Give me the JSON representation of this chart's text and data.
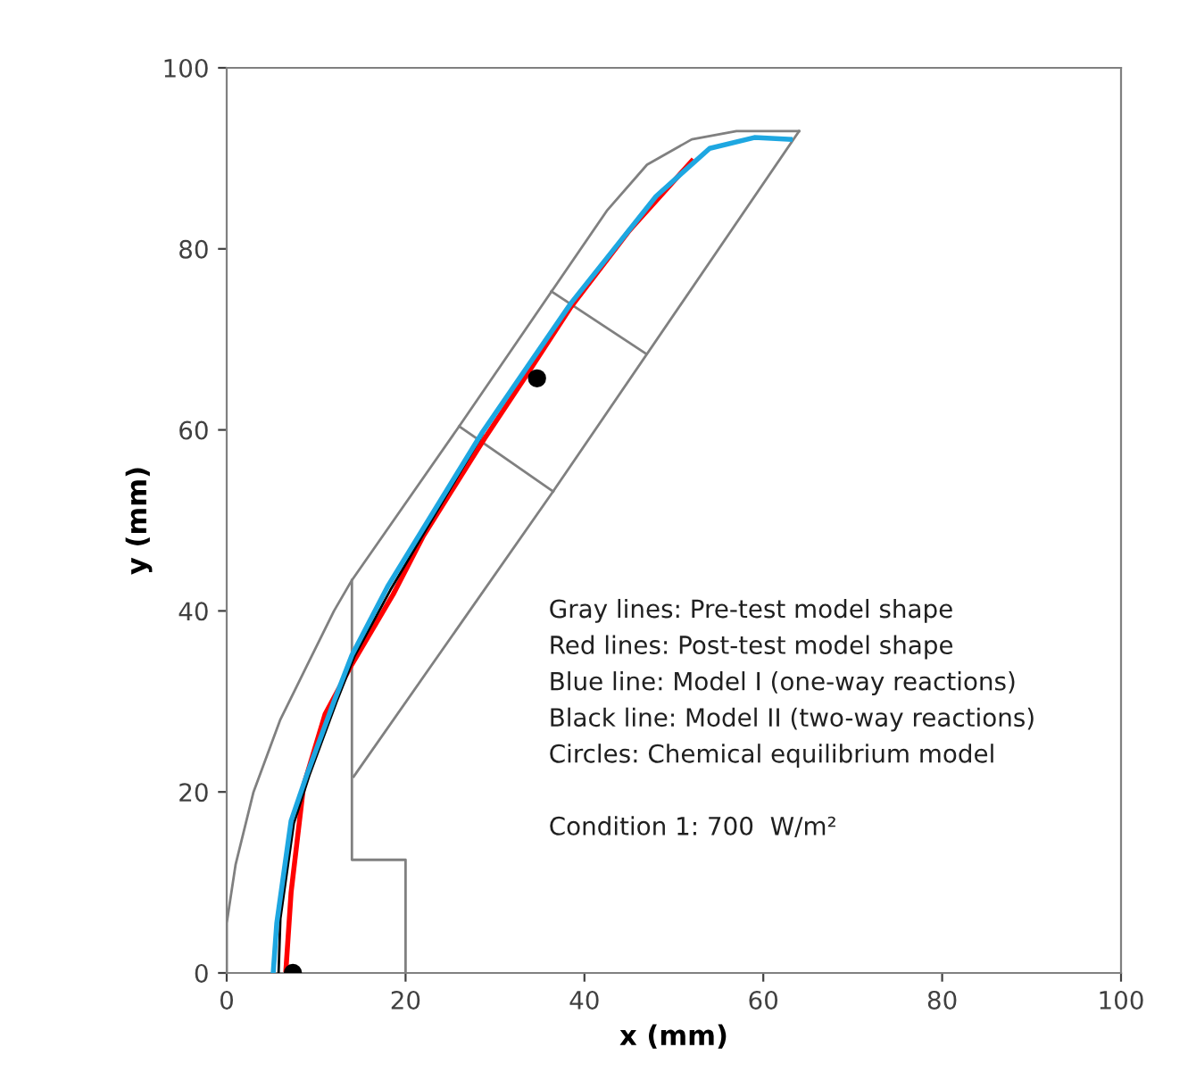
{
  "chart_data": {
    "type": "line",
    "xlabel": "x (mm)",
    "ylabel": "y (mm)",
    "xlim": [
      0,
      100
    ],
    "ylim": [
      0,
      100
    ],
    "xticks": [
      0,
      20,
      40,
      60,
      80,
      100
    ],
    "yticks": [
      0,
      20,
      40,
      60,
      80,
      100
    ],
    "grid": false,
    "legend": false,
    "marker": "none",
    "line_style": "solid",
    "series": [
      {
        "color": "#808080",
        "x": [
          0,
          0,
          1,
          3,
          6,
          9,
          12,
          14,
          26,
          42.5,
          47,
          52,
          57,
          64
        ],
        "values": [
          0,
          5.5,
          12,
          20,
          28,
          34,
          40,
          43.4,
          60.4,
          84.2,
          89.3,
          92.1,
          93,
          93
        ]
      },
      {
        "color": "#808080",
        "x": [
          64,
          36.5,
          14.2
        ],
        "values": [
          93,
          53.2,
          21.7
        ]
      },
      {
        "color": "#808080",
        "x": [
          14,
          14,
          20,
          20
        ],
        "values": [
          43.4,
          12.5,
          12.5,
          0
        ]
      },
      {
        "color": "#808080",
        "x": [
          26,
          36.5
        ],
        "values": [
          60.4,
          53.2
        ]
      },
      {
        "color": "#808080",
        "x": [
          36.3,
          46.9
        ],
        "values": [
          75.3,
          68.4
        ]
      },
      {
        "color": "#ff0000",
        "x": [
          6.6,
          7.2,
          8.6,
          11,
          14,
          18.6,
          22,
          28.8,
          33.5,
          38.5,
          45,
          52
        ],
        "values": [
          0,
          8.9,
          20.7,
          28.6,
          34.1,
          41.8,
          48.3,
          59,
          66,
          73.6,
          82,
          89.7
        ]
      },
      {
        "color": "#000000",
        "x": [
          5.8,
          6,
          7.5,
          9.3,
          12.3,
          14.3,
          18.3,
          28.6
        ],
        "values": [
          0,
          6,
          16.5,
          22,
          30,
          35,
          42.3,
          59.5
        ]
      },
      {
        "color": "#1ea7e1",
        "x": [
          5.2,
          5.6,
          7.2,
          9,
          12,
          14,
          18,
          28.5,
          38.5,
          48,
          54,
          59,
          63
        ],
        "values": [
          0,
          5.5,
          16.8,
          22,
          30,
          35.1,
          42.7,
          59.6,
          74,
          85.8,
          91.1,
          92.3,
          92.1
        ]
      },
      {
        "type": "scatter",
        "marker": "circle",
        "color": "#000000",
        "x": [
          7.4,
          34.7
        ],
        "values": [
          0,
          65.7
        ]
      }
    ],
    "annotations": [
      "Gray lines: Pre-test model shape",
      "Red lines: Post-test model shape",
      "Blue line: Model I (one-way reactions)",
      "Black line: Model II (two-way reactions)",
      "Circles: Chemical equilibrium model",
      "Condition 1: 700  W/m²"
    ]
  }
}
